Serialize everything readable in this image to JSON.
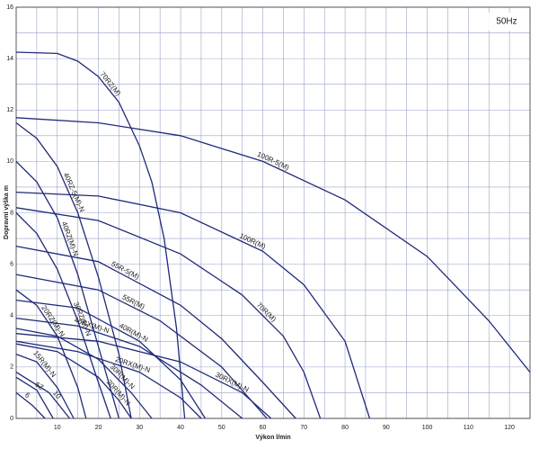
{
  "chart_data": {
    "type": "line",
    "annotation": "50Hz",
    "x_label": "Výkon l/min",
    "y_label": "Dopravní výška m",
    "color": "#1f2a7a",
    "grid": true,
    "xlim": [
      0,
      125
    ],
    "ylim": [
      0,
      16
    ],
    "xticks": [
      10,
      20,
      30,
      40,
      50,
      60,
      70,
      80,
      90,
      100,
      110,
      120
    ],
    "xminorticks": [
      5,
      15,
      25,
      35,
      45,
      55,
      65,
      75,
      85,
      95,
      105,
      115
    ],
    "yticks": [
      0,
      2,
      4,
      6,
      8,
      10,
      12,
      14,
      16
    ],
    "yminorticks": [
      1,
      3,
      5,
      7,
      9,
      11,
      13,
      15
    ],
    "series": [
      {
        "name": "70RZ(M)",
        "x": [
          0,
          10,
          15,
          20,
          25,
          30,
          33,
          36,
          39,
          41
        ],
        "values": [
          14.25,
          14.2,
          13.9,
          13.3,
          12.3,
          10.6,
          9.2,
          7,
          3.5,
          0
        ]
      },
      {
        "name": "100R-5(M)",
        "x": [
          0,
          20,
          40,
          60,
          80,
          100,
          115,
          125
        ],
        "values": [
          11.7,
          11.5,
          11,
          10,
          8.5,
          6.3,
          3.8,
          1.8
        ]
      },
      {
        "name": "100R(M)",
        "x": [
          0,
          20,
          40,
          60,
          70,
          80,
          86
        ],
        "values": [
          8.8,
          8.65,
          8,
          6.5,
          5.2,
          3,
          0
        ]
      },
      {
        "name": "70R(M)",
        "x": [
          0,
          20,
          40,
          55,
          65,
          70,
          74
        ],
        "values": [
          8.2,
          7.7,
          6.4,
          4.8,
          3.2,
          1.8,
          0
        ]
      },
      {
        "name": "55R-5(M)",
        "x": [
          0,
          20,
          40,
          50,
          60,
          68
        ],
        "values": [
          6.7,
          6.1,
          4.4,
          3.1,
          1.4,
          0
        ]
      },
      {
        "name": "55R(M)",
        "x": [
          0,
          20,
          35,
          50,
          61
        ],
        "values": [
          5.6,
          5,
          3.8,
          2,
          0
        ]
      },
      {
        "name": "40R(M)-N",
        "x": [
          0,
          15,
          30,
          40,
          46
        ],
        "values": [
          4.6,
          4.3,
          3,
          1.5,
          0
        ]
      },
      {
        "name": "40RX(M)-N",
        "x": [
          0,
          15,
          30,
          45,
          55
        ],
        "values": [
          3.9,
          3.6,
          2.8,
          1.3,
          0
        ]
      },
      {
        "name": "30RX(M)-N",
        "x": [
          0,
          20,
          40,
          55,
          62
        ],
        "values": [
          3.3,
          3,
          2.2,
          1,
          0
        ]
      },
      {
        "name": "20RX(M)-N",
        "x": [
          0,
          15,
          30,
          40,
          45
        ],
        "values": [
          3,
          2.6,
          1.8,
          0.8,
          0
        ]
      },
      {
        "name": "40RZ-5(M)-N",
        "x": [
          0,
          5,
          10,
          15,
          20,
          25,
          28
        ],
        "values": [
          11.5,
          10.9,
          9.8,
          8,
          5.5,
          2.5,
          0
        ]
      },
      {
        "name": "40RZ(M)-N",
        "x": [
          0,
          5,
          10,
          15,
          20,
          25
        ],
        "values": [
          10,
          9.2,
          7.8,
          5.6,
          2.8,
          0
        ]
      },
      {
        "name": "30RZ(M)-N",
        "x": [
          0,
          5,
          10,
          15,
          20,
          23
        ],
        "values": [
          8,
          7.2,
          5.8,
          3.8,
          1.4,
          0
        ]
      },
      {
        "name": "20RZ(M)-N",
        "x": [
          0,
          5,
          10,
          15,
          17
        ],
        "values": [
          5,
          4.4,
          3.2,
          1.2,
          0
        ]
      },
      {
        "name": "30R(M)-N",
        "x": [
          0,
          10,
          20,
          28,
          33
        ],
        "values": [
          3.5,
          3.2,
          2.3,
          1,
          0
        ]
      },
      {
        "name": "20R(M)-N",
        "x": [
          0,
          10,
          20,
          25,
          28
        ],
        "values": [
          2.9,
          2.6,
          1.6,
          0.7,
          0
        ]
      },
      {
        "name": "15R(M)-N",
        "x": [
          0,
          5,
          10,
          14
        ],
        "values": [
          2.5,
          2.2,
          1.2,
          0
        ]
      },
      {
        "name": "10",
        "x": [
          0,
          8,
          13
        ],
        "values": [
          1.8,
          1,
          0
        ]
      },
      {
        "name": "6Z",
        "x": [
          0,
          5,
          9
        ],
        "values": [
          1.6,
          1.1,
          0
        ]
      },
      {
        "name": "6",
        "x": [
          0,
          4,
          7
        ],
        "values": [
          1,
          0.5,
          0
        ]
      }
    ]
  }
}
